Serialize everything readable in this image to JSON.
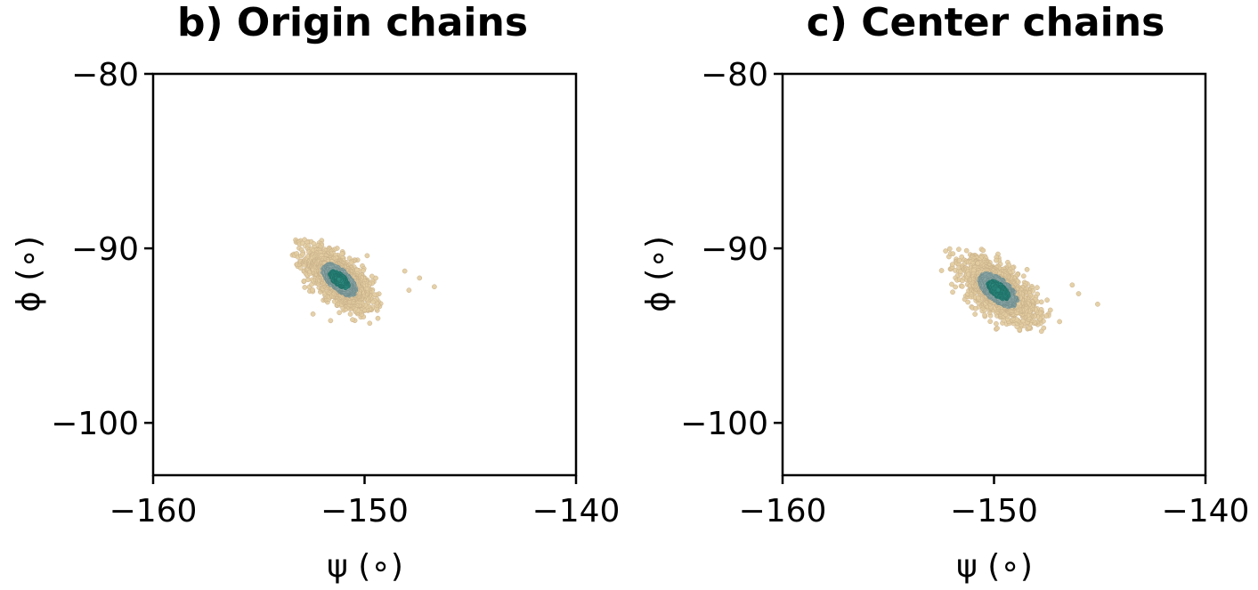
{
  "chart_data": [
    {
      "type": "scatter",
      "title": "b) Origin chains",
      "xlabel": "ψ (∘)",
      "ylabel": "ϕ (∘)",
      "xlim": [
        -160,
        -140
      ],
      "ylim": [
        -103,
        -80
      ],
      "xticks": [
        -160,
        -150,
        -140
      ],
      "yticks": [
        -80,
        -90,
        -100
      ],
      "xtick_labels": [
        "−160",
        "−150",
        "−140"
      ],
      "ytick_labels": [
        "−80",
        "−90",
        "−100"
      ],
      "grid": false,
      "density": {
        "center": [
          -151.2,
          -91.8
        ],
        "x_spread": 0.8,
        "y_spread": 0.9,
        "correlation": -0.65,
        "x_range": [
          -153.5,
          -149.2
        ],
        "y_range": [
          -94.3,
          -89.5
        ],
        "outliers": [
          [
            -148.1,
            -91.3
          ],
          [
            -147.4,
            -91.7
          ],
          [
            -146.7,
            -92.2
          ],
          [
            -147.9,
            -92.4
          ]
        ]
      },
      "colors": {
        "outer": "#e2ccA0",
        "mid": "#8fa8a8",
        "core": "#2e8b80"
      }
    },
    {
      "type": "scatter",
      "title": "c) Center chains",
      "xlabel": "ψ (∘)",
      "ylabel": "ϕ (∘)",
      "xlim": [
        -160,
        -140
      ],
      "ylim": [
        -103,
        -80
      ],
      "xticks": [
        -160,
        -150,
        -140
      ],
      "yticks": [
        -80,
        -90,
        -100
      ],
      "xtick_labels": [
        "−160",
        "−150",
        "−140"
      ],
      "ytick_labels": [
        "−80",
        "−90",
        "−100"
      ],
      "grid": false,
      "density": {
        "center": [
          -149.8,
          -92.4
        ],
        "x_spread": 0.9,
        "y_spread": 0.95,
        "correlation": -0.62,
        "x_range": [
          -152.5,
          -147.2
        ],
        "y_range": [
          -94.9,
          -90.0
        ],
        "outliers": [
          [
            -146.3,
            -92.1
          ],
          [
            -145.1,
            -93.2
          ],
          [
            -146.0,
            -92.6
          ],
          [
            -146.9,
            -94.2
          ]
        ]
      },
      "colors": {
        "outer": "#e2ccA0",
        "mid": "#8fa8a8",
        "core": "#2e8b80"
      }
    }
  ]
}
